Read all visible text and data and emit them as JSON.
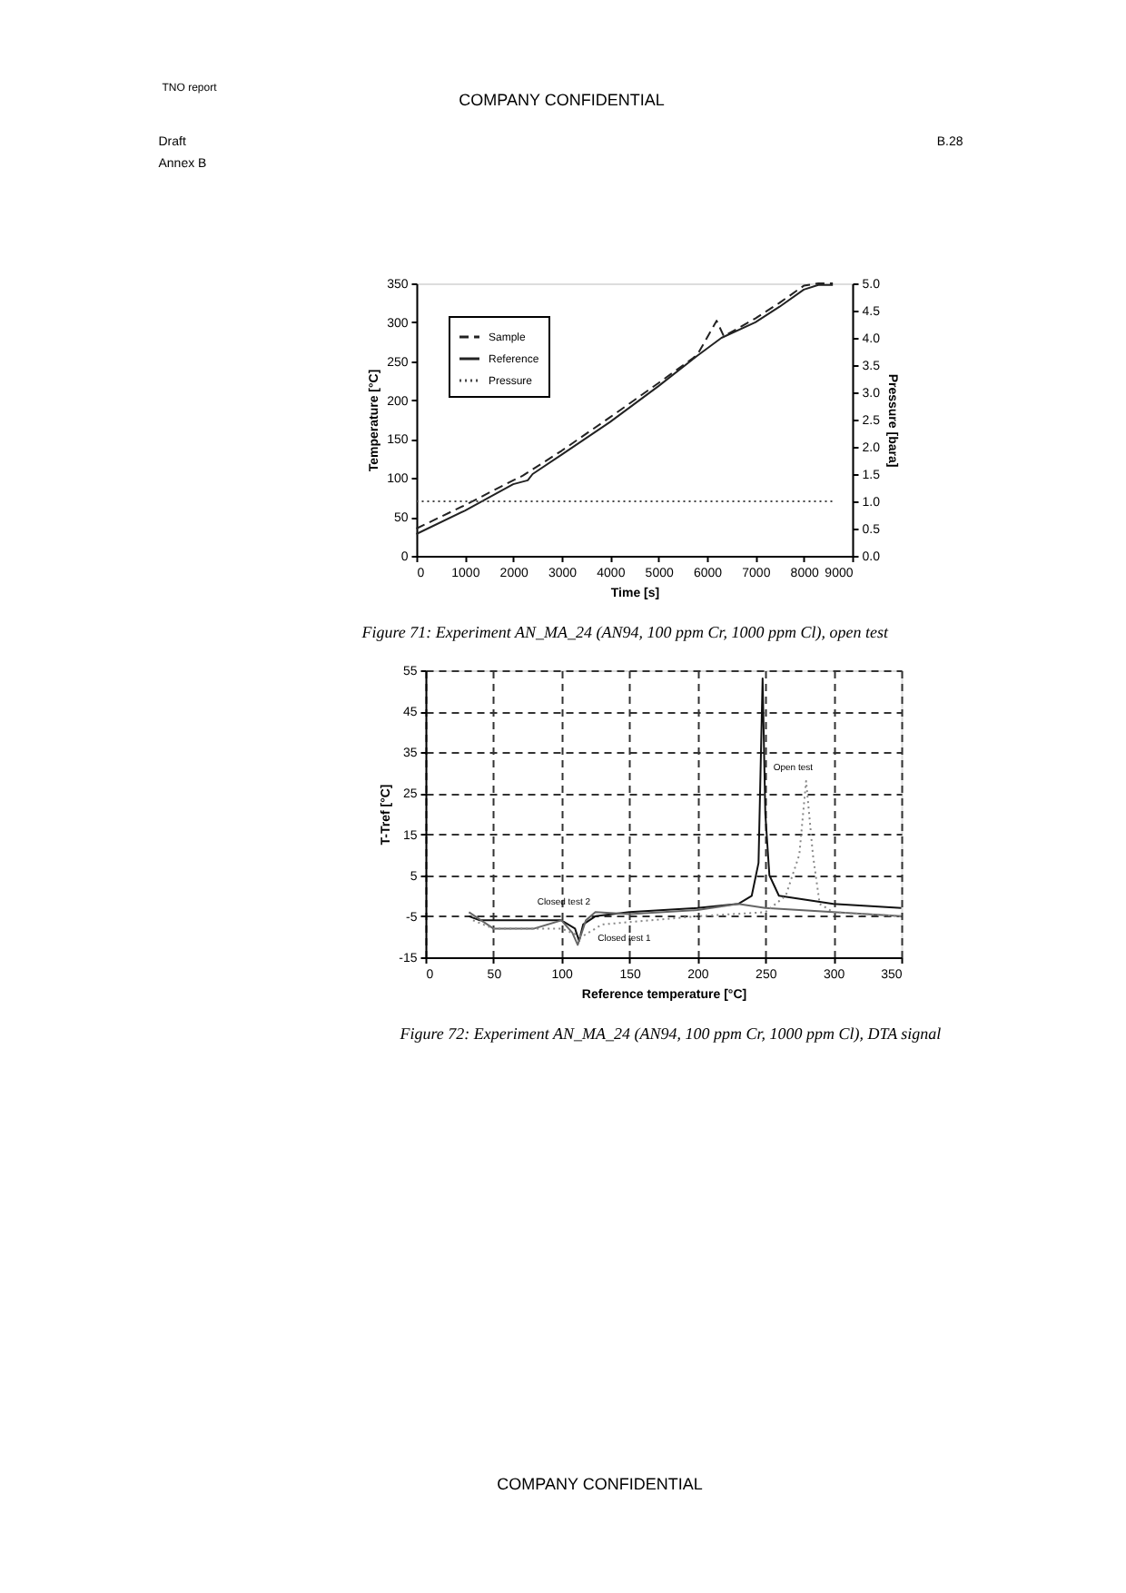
{
  "chart_data": [
    {
      "type": "line",
      "title": "Figure 71:    Experiment AN_MA_24 (AN94, 100 ppm Cr, 1000 ppm Cl), open test",
      "xlabel": "Time [s]",
      "ylabel": "Temperature [°C]",
      "y2label": "Pressure [bara]",
      "annotations": [
        "TNO report",
        "COMPANY CONFIDENTIAL",
        "Draft",
        "B.28",
        "Annex B"
      ],
      "xlim": [
        0,
        9000
      ],
      "xticks": [
        0,
        1000,
        2000,
        3000,
        4000,
        5000,
        6000,
        7000,
        8000,
        9000
      ],
      "ylim": [
        0,
        350
      ],
      "yticks": [
        0,
        50,
        100,
        150,
        200,
        250,
        300,
        350
      ],
      "y2lim": [
        0,
        5
      ],
      "y2ticks": [
        {
          "value": 0,
          "label": "0.0"
        },
        0.5,
        {
          "value": 1,
          "label": "1.0"
        },
        1.5,
        {
          "value": 2,
          "label": "2.0"
        },
        2.5,
        {
          "value": 3,
          "label": "3.0"
        },
        3.5,
        {
          "value": 4,
          "label": "4.0"
        },
        4.5,
        {
          "value": 5,
          "label": "5.0"
        }
      ],
      "legend": "top left",
      "grid": false,
      "series": [
        {
          "name": "Sample",
          "color": "#222222",
          "line_style": "dashed",
          "x": [
            0,
            1000,
            2000,
            2200,
            3000,
            4000,
            5000,
            5800,
            6200,
            6350,
            7000,
            7500,
            8000,
            8300,
            8600
          ],
          "values": [
            35,
            65,
            97,
            103,
            135,
            178,
            222,
            258,
            302,
            282,
            305,
            325,
            347,
            350,
            350
          ]
        },
        {
          "name": "Reference",
          "color": "#222222",
          "line_style": "solid",
          "x": [
            0,
            1000,
            2000,
            2300,
            2400,
            3000,
            4000,
            5000,
            5800,
            6300,
            7000,
            7500,
            8000,
            8300,
            8600
          ],
          "values": [
            28,
            58,
            92,
            97,
            105,
            130,
            172,
            218,
            257,
            280,
            300,
            320,
            342,
            348,
            348
          ]
        },
        {
          "name": "Pressure",
          "color": "#444444",
          "line_style": "dotted",
          "axis": "y2",
          "x": [
            0,
            2000,
            4000,
            6000,
            8000,
            8600
          ],
          "values": [
            1.0,
            1.0,
            1.0,
            1.0,
            1.0,
            1.0
          ]
        }
      ]
    },
    {
      "type": "line",
      "title": "Figure 72:    Experiment AN_MA_24 (AN94, 100 ppm Cr, 1000 ppm Cl), DTA signal",
      "xlabel": "Reference temperature [°C]",
      "ylabel": "T-Tref [°C]",
      "annotations": [
        {
          "text": "Open test",
          "x": 280,
          "y": 28
        },
        {
          "text": "Closed test 2",
          "x": 125,
          "y": -4
        },
        {
          "text": "Closed test 1",
          "x": 116,
          "y": -7
        },
        "COMPANY CONFIDENTIAL"
      ],
      "xlim": [
        0,
        350
      ],
      "xticks": [
        0,
        50,
        100,
        150,
        200,
        250,
        300,
        350
      ],
      "ylim": [
        -15,
        55
      ],
      "yticks": [
        -15,
        -5,
        5,
        15,
        25,
        35,
        45,
        55
      ],
      "grid": true,
      "legend": false,
      "series": [
        {
          "color": "#111111",
          "line_style": "solid",
          "x": [
            32,
            40,
            50,
            100,
            110,
            113,
            116,
            125,
            150,
            200,
            230,
            240,
            245,
            248,
            250,
            253,
            260,
            280,
            300,
            350
          ],
          "values": [
            -5,
            -6,
            -6,
            -6,
            -8,
            -11,
            -7,
            -5,
            -4,
            -3,
            -2,
            0,
            8,
            53,
            20,
            5,
            0,
            -1,
            -2,
            -3
          ]
        },
        {
          "color": "#666666",
          "line_style": "solid",
          "x": [
            32,
            50,
            80,
            100,
            108,
            112,
            118,
            125,
            150,
            200,
            230,
            250,
            300,
            350
          ],
          "values": [
            -4,
            -8,
            -8,
            -6,
            -9,
            -12,
            -6,
            -4,
            -4.5,
            -3.5,
            -2,
            -3,
            -4,
            -5
          ]
        },
        {
          "color": "#888888",
          "line_style": "dotted",
          "x": [
            35,
            50,
            100,
            115,
            130,
            200,
            250,
            265,
            275,
            280,
            285,
            290,
            300,
            350
          ],
          "values": [
            -6,
            -8,
            -8,
            -10,
            -7,
            -5,
            -4,
            0,
            10,
            28,
            10,
            -2,
            -4,
            -5
          ]
        }
      ]
    }
  ]
}
